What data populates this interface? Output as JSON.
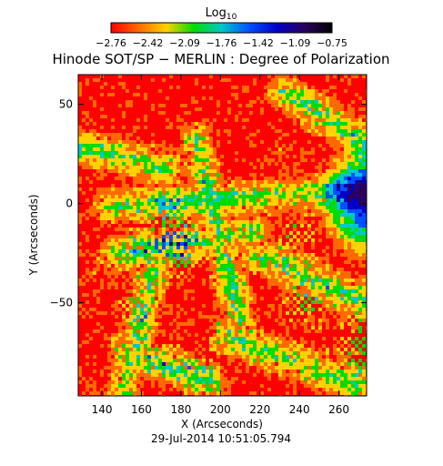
{
  "chart_data": {
    "type": "heatmap",
    "title": "Hinode SOT/SP − MERLIN : Degree of Polarization",
    "colorbar": {
      "title": "Log",
      "title_sub": "10",
      "tick_labels": [
        "−2.76",
        "−2.42",
        "−2.09",
        "−1.76",
        "−1.42",
        "−1.09",
        "−0.75"
      ],
      "range": [
        -2.76,
        -0.75
      ],
      "colormap_stops": [
        "#ff0000",
        "#ff6a00",
        "#ffd200",
        "#00dc00",
        "#00c8c8",
        "#0050ff",
        "#0000c8",
        "#2a0060",
        "#000000"
      ]
    },
    "xlabel": "X (Arcseconds)",
    "ylabel": "Y (Arcseconds)",
    "xlim": [
      128,
      274
    ],
    "ylim": [
      -97,
      65
    ],
    "x_tick_labels": [
      "140",
      "160",
      "180",
      "200",
      "220",
      "240",
      "260"
    ],
    "x_tick_values": [
      140,
      160,
      180,
      200,
      220,
      240,
      260
    ],
    "y_tick_labels": [
      "50",
      "0",
      "−50"
    ],
    "y_tick_values": [
      50,
      0,
      -50
    ],
    "date": "29-Jul-2014 10:51:05.794"
  }
}
